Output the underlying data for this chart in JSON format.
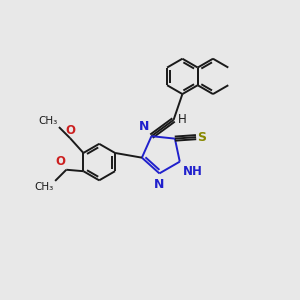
{
  "bg_color": "#e8e8e8",
  "bond_color": "#1a1a1a",
  "n_color": "#2020cc",
  "o_color": "#cc2020",
  "s_color": "#888800",
  "bond_width": 1.4,
  "font_size": 8.5,
  "xlim": [
    0,
    10
  ],
  "ylim": [
    0,
    10
  ]
}
